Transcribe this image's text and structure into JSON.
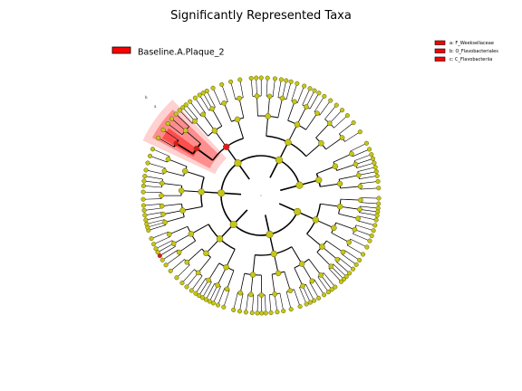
{
  "title": "Significantly Represented Taxa",
  "group_legend": {
    "label": "Baseline.A.Plaque_2",
    "color": "#ff0000"
  },
  "clade_legend": [
    {
      "label": "a: F_Weeksellaceae",
      "color": "#ff0000"
    },
    {
      "label": "b: O_Flavobacteriales",
      "color": "#ff0000"
    },
    {
      "label": "c: C_Flavobacteriia",
      "color": "#ff0000"
    }
  ],
  "clade_letters": [
    "b",
    "a"
  ],
  "colors": {
    "node_default": "#c6c61a",
    "node_highlight": "#e8141e",
    "node_stroke": "#5a5a00",
    "highlight_wedge": "#ff0000"
  },
  "tree": {
    "levels": [
      "phylum",
      "class",
      "order",
      "family",
      "genus"
    ],
    "phyla": [
      {
        "start_deg": 0,
        "end_deg": 48,
        "classes": [
          [
            2,
            3,
            2
          ],
          [
            3,
            2
          ],
          [
            2,
            2,
            3
          ]
        ]
      },
      {
        "start_deg": 50,
        "end_deg": 105,
        "classes": [
          [
            3,
            2,
            3
          ],
          [
            2,
            3
          ],
          [
            3,
            2,
            2
          ]
        ]
      },
      {
        "start_deg": 107,
        "end_deg": 160,
        "classes": [
          [
            2,
            3,
            3
          ],
          [
            3,
            2
          ],
          [
            2,
            3,
            2
          ]
        ]
      },
      {
        "start_deg": 162,
        "end_deg": 205,
        "classes": [
          [
            3,
            2,
            2
          ],
          [
            2,
            3
          ],
          [
            2,
            2
          ]
        ]
      },
      {
        "start_deg": 207,
        "end_deg": 262,
        "classes": [
          [
            2,
            3
          ],
          [
            3,
            2,
            3
          ],
          [
            2,
            2
          ]
        ],
        "highlight": {
          "class": 0,
          "order": 0,
          "family": 0
        }
      },
      {
        "start_deg": 264,
        "end_deg": 330,
        "classes": [
          [
            3,
            2,
            3
          ],
          [
            2,
            3,
            2
          ],
          [
            3,
            2
          ]
        ]
      },
      {
        "start_deg": 332,
        "end_deg": 358,
        "classes": [
          [
            2,
            3
          ],
          [
            3,
            2
          ]
        ]
      }
    ],
    "highlight_tip": {
      "phylum": 2,
      "class": 2,
      "order": 1,
      "family": 0
    }
  }
}
